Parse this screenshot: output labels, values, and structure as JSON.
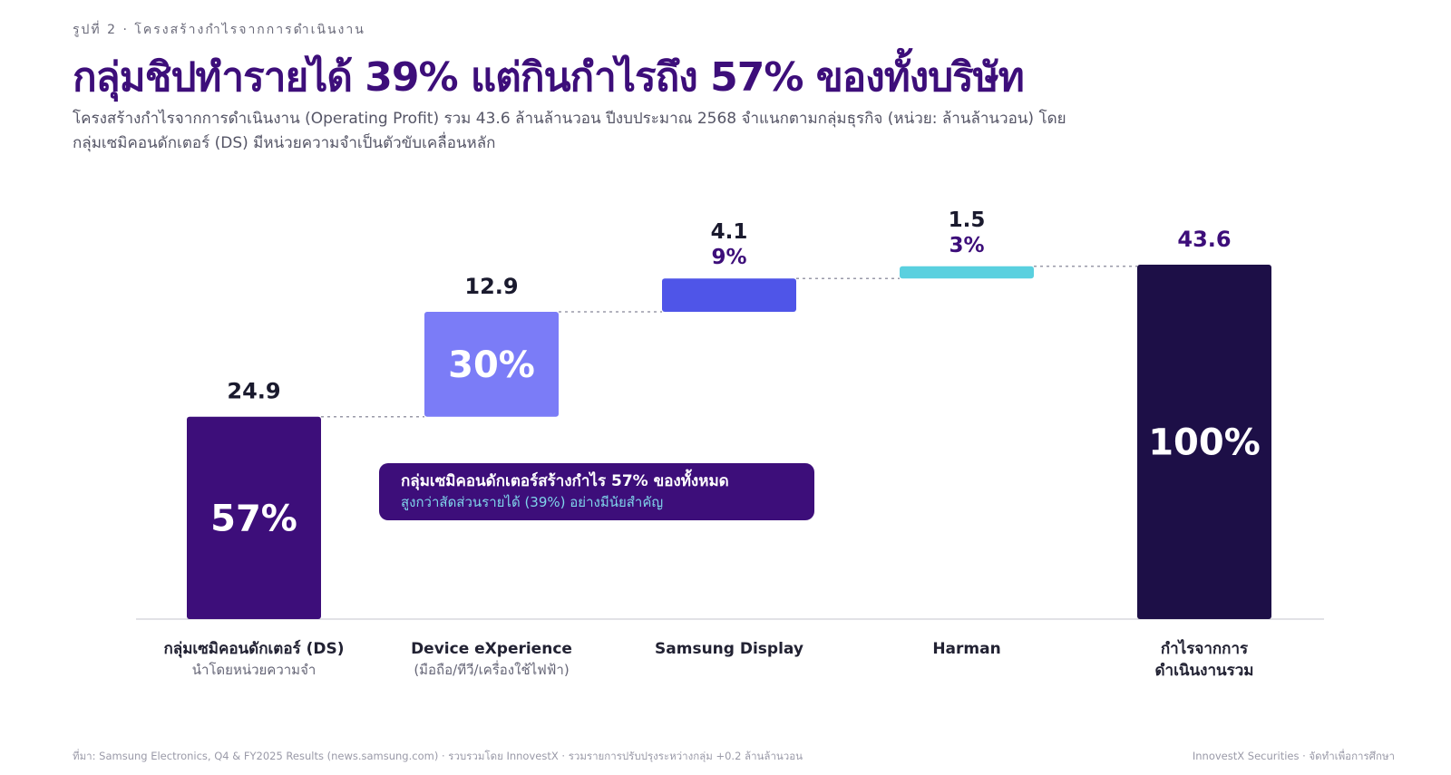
{
  "header": {
    "kicker": "รูปที่ 2 · โครงสร้างกำไรจากการดำเนินงาน",
    "title": "กลุ่มชิปทำรายได้ 39% แต่กินกำไรถึง 57% ของทั้งบริษัท",
    "subtitle": "โครงสร้างกำไรจากการดำเนินงาน (Operating Profit) รวม 43.6 ล้านล้านวอน ปีงบประมาณ 2568 จำแนกตามกลุ่มธุรกิจ (หน่วย: ล้านล้านวอน) โดยกลุ่มเซมิคอนดักเตอร์ (DS) มีหน่วยความจำเป็นตัวขับเคลื่อนหลัก"
  },
  "callout": {
    "main": "กลุ่มเซมิคอนดักเตอร์สร้างกำไร 57% ของทั้งหมด",
    "sub": "สูงกว่าสัดส่วนรายได้ (39%) อย่างมีนัยสำคัญ"
  },
  "chart_data": {
    "type": "bar",
    "subtype": "waterfall",
    "categories": [
      {
        "name": "กลุ่มเซมิคอนดักเตอร์ (DS)",
        "sub": "นำโดยหน่วยความจำ"
      },
      {
        "name": "Device eXperience",
        "sub": "(มือถือ/ทีวี/เครื่องใช้ไฟฟ้า)"
      },
      {
        "name": "Samsung Display",
        "sub": ""
      },
      {
        "name": "Harman",
        "sub": ""
      },
      {
        "name": "กำไรจากการ ดำเนินงานรวม",
        "sub": ""
      }
    ],
    "values": [
      24.9,
      12.9,
      4.1,
      1.5,
      43.6
    ],
    "value_labels": [
      "24.9",
      "12.9",
      "4.1",
      "1.5",
      "43.6"
    ],
    "share_labels": [
      "57%",
      "30%",
      "9%",
      "3%",
      "100%"
    ],
    "is_total": [
      false,
      false,
      false,
      false,
      true
    ],
    "colors": [
      "#3d0e7a",
      "#7b7cf7",
      "#4f55e8",
      "#5ad0df",
      "#1d0f47"
    ],
    "ylim": [
      0,
      43.6
    ],
    "grid": false
  },
  "footer": {
    "source": "ที่มา: Samsung Electronics, Q4 & FY2025 Results (news.samsung.com) · รวบรวมโดย InnovestX · รวมรายการปรับปรุงระหว่างกลุ่ม +0.2 ล้านล้านวอน",
    "credit": "InnovestX Securities · จัดทำเพื่อการศึกษา"
  }
}
